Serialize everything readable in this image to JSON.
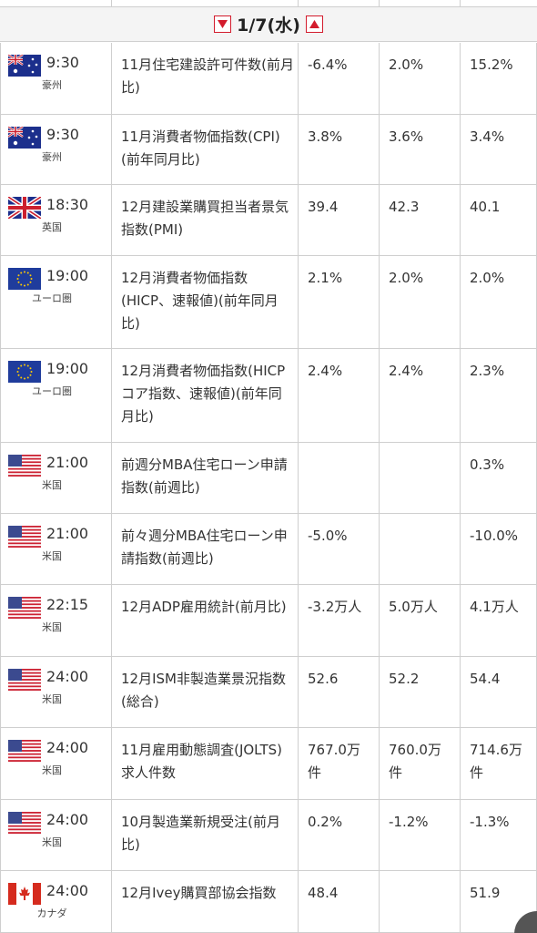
{
  "header": {
    "date": "1/7(水)",
    "prev_icon": "triangle-down-icon",
    "next_icon": "triangle-up-icon"
  },
  "colors": {
    "accent": "#d31c2d",
    "border": "#cfcfcf",
    "header_bg": "#f4f4f4"
  },
  "rows": [
    {
      "flag": "australia-flag-icon",
      "time": "9:30",
      "region": "豪州",
      "indicator": "11月住宅建設許可件数(前月比)",
      "v1": "-6.4%",
      "v2": "2.0%",
      "v3": "15.2%"
    },
    {
      "flag": "australia-flag-icon",
      "time": "9:30",
      "region": "豪州",
      "indicator": "11月消費者物価指数(CPI)(前年同月比)",
      "v1": "3.8%",
      "v2": "3.6%",
      "v3": "3.4%"
    },
    {
      "flag": "uk-flag-icon",
      "time": "18:30",
      "region": "英国",
      "indicator": "12月建設業購買担当者景気指数(PMI)",
      "v1": "39.4",
      "v2": "42.3",
      "v3": "40.1"
    },
    {
      "flag": "eu-flag-icon",
      "time": "19:00",
      "region": "ユーロ圏",
      "indicator": "12月消費者物価指数(HICP、速報値)(前年同月比)",
      "v1": "2.1%",
      "v2": "2.0%",
      "v3": "2.0%"
    },
    {
      "flag": "eu-flag-icon",
      "time": "19:00",
      "region": "ユーロ圏",
      "indicator": "12月消費者物価指数(HICPコア指数、速報値)(前年同月比)",
      "v1": "2.4%",
      "v2": "2.4%",
      "v3": "2.3%"
    },
    {
      "flag": "us-flag-icon",
      "time": "21:00",
      "region": "米国",
      "indicator": "前週分MBA住宅ローン申請指数(前週比)",
      "v1": "",
      "v2": "",
      "v3": "0.3%"
    },
    {
      "flag": "us-flag-icon",
      "time": "21:00",
      "region": "米国",
      "indicator": "前々週分MBA住宅ローン申請指数(前週比)",
      "v1": "-5.0%",
      "v2": "",
      "v3": "-10.0%"
    },
    {
      "flag": "us-flag-icon",
      "time": "22:15",
      "region": "米国",
      "indicator": "12月ADP雇用統計(前月比)",
      "v1": "-3.2万人",
      "v2": "5.0万人",
      "v3": "4.1万人"
    },
    {
      "flag": "us-flag-icon",
      "time": "24:00",
      "region": "米国",
      "indicator": "12月ISM非製造業景況指数(総合)",
      "v1": "52.6",
      "v2": "52.2",
      "v3": "54.4"
    },
    {
      "flag": "us-flag-icon",
      "time": "24:00",
      "region": "米国",
      "indicator": "11月雇用動態調査(JOLTS)求人件数",
      "v1": "767.0万件",
      "v2": "760.0万件",
      "v3": "714.6万件"
    },
    {
      "flag": "us-flag-icon",
      "time": "24:00",
      "region": "米国",
      "indicator": "10月製造業新規受注(前月比)",
      "v1": "0.2%",
      "v2": "-1.2%",
      "v3": "-1.3%"
    },
    {
      "flag": "canada-flag-icon",
      "time": "24:00",
      "region": "カナダ",
      "indicator": "12月Ivey購買部協会指数",
      "v1": "48.4",
      "v2": "",
      "v3": "51.9"
    }
  ]
}
